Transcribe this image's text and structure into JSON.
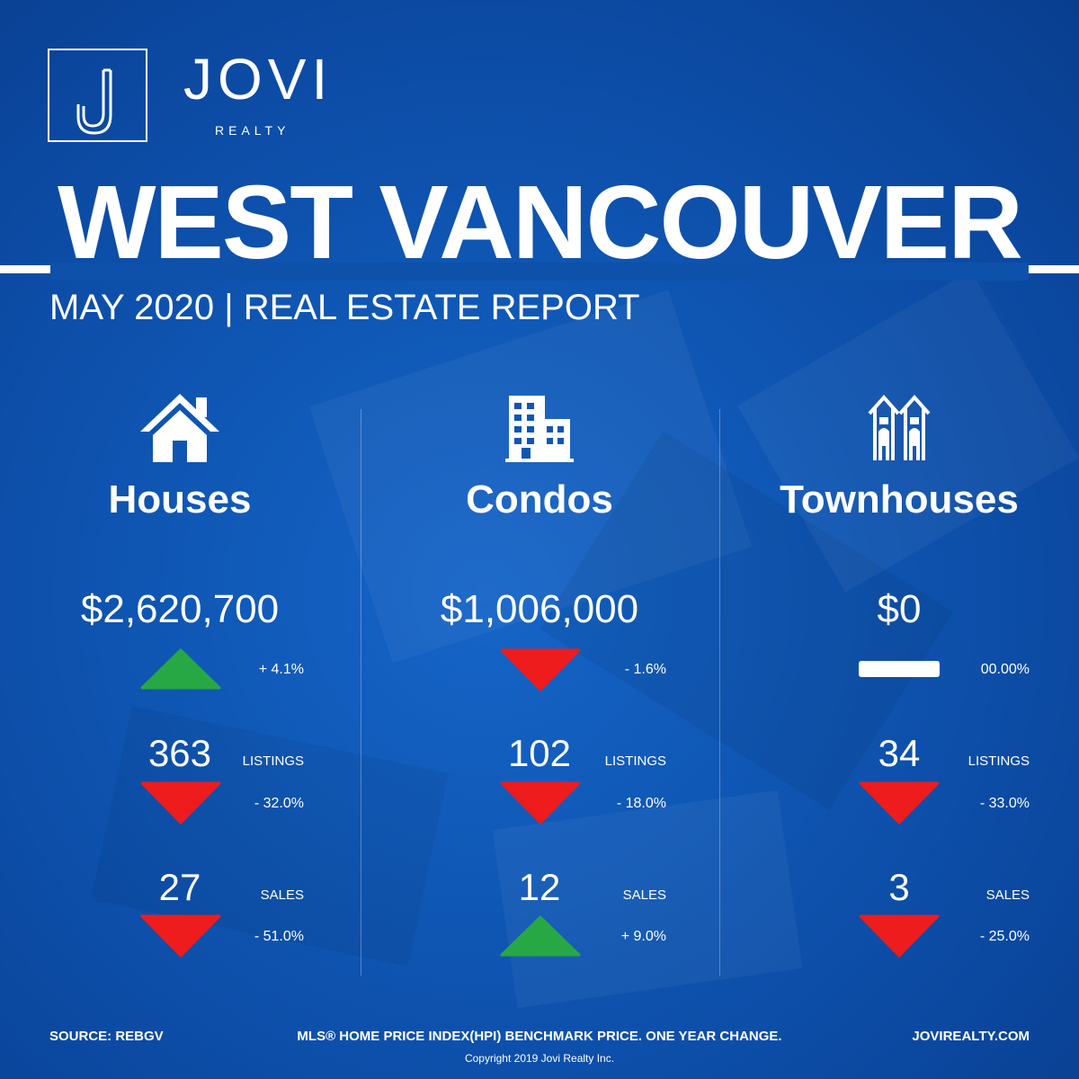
{
  "brand": {
    "name": "JOVI",
    "sub": "REALTY"
  },
  "title": "WEST VANCOUVER",
  "subtitle": "MAY 2020 | REAL ESTATE REPORT",
  "colors": {
    "background": "#0f56b3",
    "up": "#27a844",
    "down": "#ee1c1c",
    "text": "#ffffff"
  },
  "columns": [
    {
      "icon": "house-icon",
      "title": "Houses",
      "price": "$2,620,700",
      "price_change": "+ 4.1%",
      "price_trend": "up",
      "listings": "363",
      "listings_label": "LISTINGS",
      "listings_change": "- 32.0%",
      "listings_trend": "down",
      "sales": "27",
      "sales_label": "SALES",
      "sales_change": "- 51.0%",
      "sales_trend": "down"
    },
    {
      "icon": "condo-building-icon",
      "title": "Condos",
      "price": "$1,006,000",
      "price_change": "- 1.6%",
      "price_trend": "down",
      "listings": "102",
      "listings_label": "LISTINGS",
      "listings_change": "- 18.0%",
      "listings_trend": "down",
      "sales": "12",
      "sales_label": "SALES",
      "sales_change": "+ 9.0%",
      "sales_trend": "up"
    },
    {
      "icon": "townhouse-icon",
      "title": "Townhouses",
      "price": "$0",
      "price_change": "00.00%",
      "price_trend": "flat",
      "listings": "34",
      "listings_label": "LISTINGS",
      "listings_change": "- 33.0%",
      "listings_trend": "down",
      "sales": "3",
      "sales_label": "SALES",
      "sales_change": "- 25.0%",
      "sales_trend": "down"
    }
  ],
  "footer": {
    "source": "SOURCE:  REBGV",
    "note": "MLS® HOME PRICE INDEX(HPI) BENCHMARK PRICE. ONE YEAR CHANGE.",
    "website": "JOVIREALTY.COM",
    "copyright": "Copyright 2019 Jovi Realty Inc."
  }
}
